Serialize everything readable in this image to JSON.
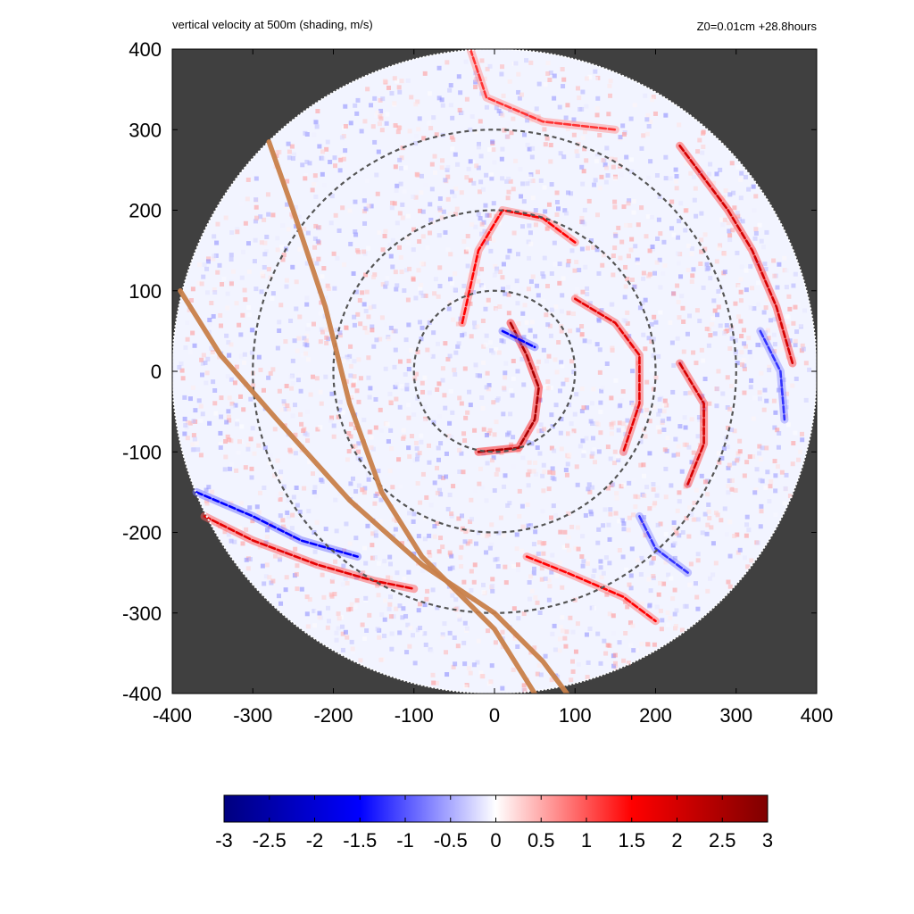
{
  "chart_data": {
    "type": "heatmap",
    "title": "vertical velocity at 500m (shading, m/s)",
    "subtitle": "Z0=0.01cm  +28.8hours",
    "xlabel": "",
    "ylabel": "",
    "xlim": [
      -400,
      400
    ],
    "ylim": [
      -400,
      400
    ],
    "x_ticks": [
      "-400",
      "-300",
      "-200",
      "-100",
      "0",
      "100",
      "200",
      "300",
      "400"
    ],
    "y_ticks": [
      "400",
      "300",
      "200",
      "100",
      "0",
      "-100",
      "-200",
      "-300",
      "-400"
    ],
    "x_tick_values": [
      -400,
      -300,
      -200,
      -100,
      0,
      100,
      200,
      300,
      400
    ],
    "y_tick_values": [
      400,
      300,
      200,
      100,
      0,
      -100,
      -200,
      -300,
      -400
    ],
    "domain_radius": 400,
    "outside_color": "#404040",
    "range_circles": [
      100,
      200,
      300
    ],
    "tracks": [
      {
        "points": [
          [
            -280,
            285
          ],
          [
            -250,
            200
          ],
          [
            -210,
            80
          ],
          [
            -180,
            -40
          ],
          [
            -140,
            -150
          ],
          [
            -90,
            -230
          ],
          [
            0,
            -320
          ],
          [
            50,
            -400
          ]
        ]
      },
      {
        "points": [
          [
            -390,
            100
          ],
          [
            -340,
            20
          ],
          [
            -270,
            -60
          ],
          [
            -180,
            -160
          ],
          [
            -90,
            -240
          ],
          [
            0,
            -300
          ],
          [
            60,
            -360
          ],
          [
            90,
            -400
          ]
        ]
      }
    ],
    "track_color": "#c8804a",
    "colorbar": {
      "min": -3,
      "max": 3,
      "tick_labels": [
        "-3",
        "-2.5",
        "-2",
        "-1.5",
        "-1",
        "-0.5",
        "0",
        "0.5",
        "1",
        "1.5",
        "2",
        "2.5",
        "3"
      ],
      "tick_values": [
        -3,
        -2.5,
        -2,
        -1.5,
        -1,
        -0.5,
        0,
        0.5,
        1,
        1.5,
        2,
        2.5,
        3
      ],
      "colors": [
        "#00007f",
        "#0000ff",
        "#ffffff",
        "#ff0000",
        "#7f0000"
      ]
    },
    "features": [
      {
        "kind": "updraft-band",
        "points": [
          [
            20,
            60
          ],
          [
            40,
            20
          ],
          [
            55,
            -20
          ],
          [
            50,
            -60
          ],
          [
            30,
            -95
          ],
          [
            -20,
            -100
          ]
        ],
        "value": 2.5
      },
      {
        "kind": "updraft-band",
        "points": [
          [
            -40,
            60
          ],
          [
            -20,
            150
          ],
          [
            10,
            200
          ],
          [
            60,
            190
          ],
          [
            100,
            160
          ]
        ],
        "value": 1.5
      },
      {
        "kind": "updraft-band",
        "points": [
          [
            100,
            90
          ],
          [
            150,
            60
          ],
          [
            180,
            20
          ],
          [
            180,
            -40
          ],
          [
            160,
            -100
          ]
        ],
        "value": 1.8
      },
      {
        "kind": "updraft-band",
        "points": [
          [
            230,
            10
          ],
          [
            260,
            -40
          ],
          [
            260,
            -90
          ],
          [
            240,
            -140
          ]
        ],
        "value": 2.0
      },
      {
        "kind": "updraft-band",
        "points": [
          [
            230,
            280
          ],
          [
            290,
            200
          ],
          [
            320,
            150
          ],
          [
            350,
            80
          ],
          [
            370,
            10
          ]
        ],
        "value": 2.0
      },
      {
        "kind": "updraft-band",
        "points": [
          [
            -360,
            -180
          ],
          [
            -300,
            -210
          ],
          [
            -220,
            -240
          ],
          [
            -150,
            -260
          ],
          [
            -100,
            -270
          ]
        ],
        "value": 1.8
      },
      {
        "kind": "updraft-band",
        "points": [
          [
            -30,
            400
          ],
          [
            -10,
            340
          ],
          [
            60,
            310
          ],
          [
            150,
            300
          ]
        ],
        "value": 1.2
      },
      {
        "kind": "updraft-band",
        "points": [
          [
            40,
            -230
          ],
          [
            90,
            -250
          ],
          [
            160,
            -280
          ],
          [
            200,
            -310
          ]
        ],
        "value": 1.5
      },
      {
        "kind": "downdraft-band",
        "points": [
          [
            -370,
            -150
          ],
          [
            -300,
            -180
          ],
          [
            -240,
            -210
          ],
          [
            -170,
            -230
          ]
        ],
        "value": -1.5
      },
      {
        "kind": "downdraft-band",
        "points": [
          [
            10,
            50
          ],
          [
            30,
            40
          ],
          [
            50,
            30
          ]
        ],
        "value": -1.5
      },
      {
        "kind": "downdraft-band",
        "points": [
          [
            330,
            50
          ],
          [
            355,
            0
          ],
          [
            360,
            -60
          ]
        ],
        "value": -1.2
      },
      {
        "kind": "downdraft-band",
        "points": [
          [
            180,
            -180
          ],
          [
            200,
            -220
          ],
          [
            240,
            -250
          ]
        ],
        "value": -1.2
      }
    ]
  }
}
